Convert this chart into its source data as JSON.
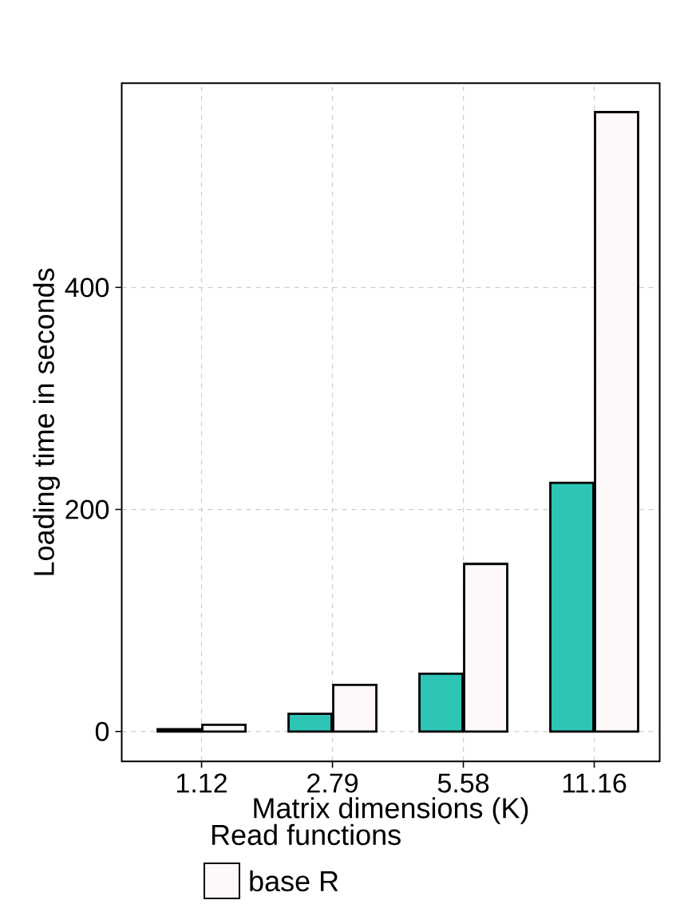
{
  "chart_data": {
    "type": "bar",
    "xlabel": "Matrix dimensions (K)",
    "ylabel": "Loading time in seconds",
    "legend_title": "Read functions",
    "categories": [
      "1.12",
      "2.79",
      "5.58",
      "11.16"
    ],
    "series": [
      {
        "color": "#2ec4b6",
        "values": [
          2,
          16,
          52,
          224
        ]
      },
      {
        "name": "base R",
        "color": "#fff8f8",
        "values": [
          6,
          42,
          151,
          558
        ]
      }
    ],
    "ylim": [
      -27,
      584
    ],
    "yticks": [
      0,
      200,
      400
    ],
    "grid": true,
    "legend": "bottom"
  }
}
